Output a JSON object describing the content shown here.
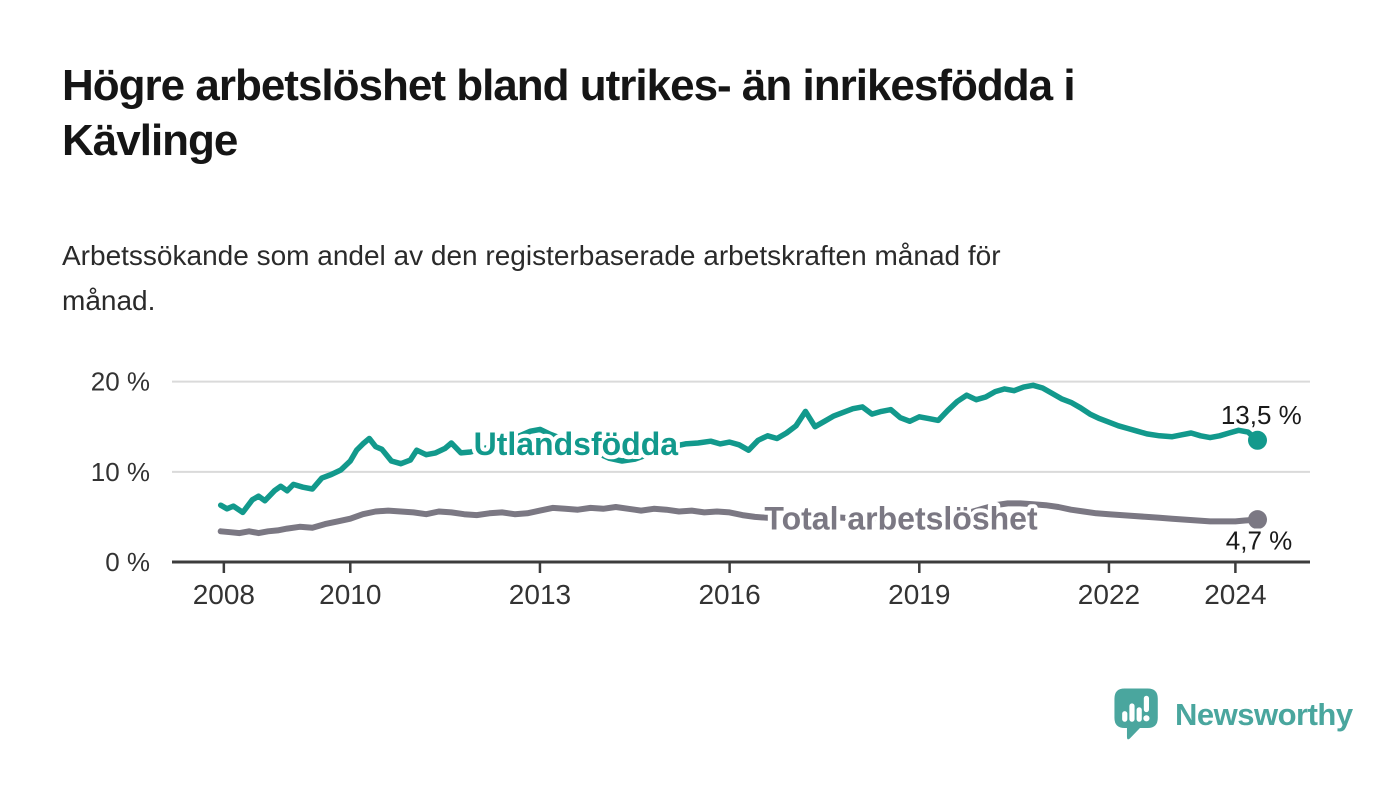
{
  "title": {
    "lines": [
      "Högre arbetslöshet bland utrikes- än inrikesfödda i",
      "Kävlinge"
    ]
  },
  "subtitle": {
    "lines": [
      "Arbetssökande som andel av den registerbaserade arbetskraften månad för",
      "månad."
    ]
  },
  "branding": {
    "name": "Newsworthy",
    "logo_color": "#4AA69E"
  },
  "chart_data": {
    "type": "line",
    "xlabel": "",
    "ylabel": "",
    "xlim": [
      2007.18,
      2025.18
    ],
    "ylim": [
      0,
      22.4
    ],
    "grid": "horizontal",
    "legend_position": "inline-labels",
    "style": {
      "grid_color": "#DADADA",
      "axis_color": "#3C3C3C",
      "axis_text_color": "#333333"
    },
    "y_ticks": [
      {
        "value": 0,
        "label": "0 %"
      },
      {
        "value": 10,
        "label": "10 %"
      },
      {
        "value": 20,
        "label": "20 %"
      }
    ],
    "x_ticks": [
      {
        "year": 2008,
        "label": "2008"
      },
      {
        "year": 2010,
        "label": "2010"
      },
      {
        "year": 2013,
        "label": "2013"
      },
      {
        "year": 2016,
        "label": "2016"
      },
      {
        "year": 2019,
        "label": "2019"
      },
      {
        "year": 2022,
        "label": "2022"
      },
      {
        "year": 2024,
        "label": "2024"
      }
    ],
    "series": [
      {
        "id": "utlandsfodda",
        "name": "Utlandsfödda",
        "color": "#12998C",
        "width": 5.5,
        "end_value_label": "13,5 %",
        "points": [
          [
            2007.95,
            6.3
          ],
          [
            2008.05,
            5.9
          ],
          [
            2008.15,
            6.2
          ],
          [
            2008.3,
            5.5
          ],
          [
            2008.45,
            6.9
          ],
          [
            2008.55,
            7.3
          ],
          [
            2008.65,
            6.8
          ],
          [
            2008.8,
            7.9
          ],
          [
            2008.9,
            8.4
          ],
          [
            2009.0,
            7.9
          ],
          [
            2009.1,
            8.6
          ],
          [
            2009.25,
            8.3
          ],
          [
            2009.4,
            8.1
          ],
          [
            2009.55,
            9.3
          ],
          [
            2009.7,
            9.7
          ],
          [
            2009.85,
            10.2
          ],
          [
            2010.0,
            11.2
          ],
          [
            2010.1,
            12.4
          ],
          [
            2010.2,
            13.1
          ],
          [
            2010.3,
            13.7
          ],
          [
            2010.4,
            12.8
          ],
          [
            2010.5,
            12.5
          ],
          [
            2010.65,
            11.2
          ],
          [
            2010.8,
            10.9
          ],
          [
            2010.95,
            11.3
          ],
          [
            2011.05,
            12.4
          ],
          [
            2011.2,
            11.9
          ],
          [
            2011.35,
            12.1
          ],
          [
            2011.5,
            12.6
          ],
          [
            2011.6,
            13.2
          ],
          [
            2011.75,
            12.1
          ],
          [
            2011.9,
            12.2
          ],
          [
            2012.05,
            12.5
          ],
          [
            2012.25,
            12.8
          ],
          [
            2012.45,
            13.2
          ],
          [
            2012.65,
            13.9
          ],
          [
            2012.85,
            14.5
          ],
          [
            2013.0,
            14.7
          ],
          [
            2013.15,
            14.2
          ],
          [
            2013.3,
            13.8
          ],
          [
            2013.5,
            13.4
          ],
          [
            2013.7,
            12.8
          ],
          [
            2013.9,
            12.1
          ],
          [
            2014.1,
            11.5
          ],
          [
            2014.3,
            11.2
          ],
          [
            2014.5,
            11.4
          ],
          [
            2014.7,
            11.9
          ],
          [
            2014.9,
            12.4
          ],
          [
            2015.1,
            12.8
          ],
          [
            2015.3,
            13.1
          ],
          [
            2015.5,
            13.2
          ],
          [
            2015.7,
            13.4
          ],
          [
            2015.85,
            13.1
          ],
          [
            2016.0,
            13.3
          ],
          [
            2016.15,
            13.0
          ],
          [
            2016.3,
            12.4
          ],
          [
            2016.45,
            13.5
          ],
          [
            2016.6,
            14.0
          ],
          [
            2016.75,
            13.7
          ],
          [
            2016.9,
            14.3
          ],
          [
            2017.05,
            15.1
          ],
          [
            2017.2,
            16.7
          ],
          [
            2017.35,
            15.0
          ],
          [
            2017.5,
            15.6
          ],
          [
            2017.65,
            16.2
          ],
          [
            2017.8,
            16.6
          ],
          [
            2017.95,
            17.0
          ],
          [
            2018.1,
            17.2
          ],
          [
            2018.25,
            16.4
          ],
          [
            2018.4,
            16.7
          ],
          [
            2018.55,
            16.9
          ],
          [
            2018.7,
            16.0
          ],
          [
            2018.85,
            15.6
          ],
          [
            2019.0,
            16.1
          ],
          [
            2019.15,
            15.9
          ],
          [
            2019.3,
            15.7
          ],
          [
            2019.45,
            16.8
          ],
          [
            2019.6,
            17.8
          ],
          [
            2019.75,
            18.5
          ],
          [
            2019.9,
            18.0
          ],
          [
            2020.05,
            18.3
          ],
          [
            2020.2,
            18.9
          ],
          [
            2020.35,
            19.2
          ],
          [
            2020.5,
            19.0
          ],
          [
            2020.65,
            19.4
          ],
          [
            2020.8,
            19.6
          ],
          [
            2020.95,
            19.3
          ],
          [
            2021.1,
            18.7
          ],
          [
            2021.25,
            18.1
          ],
          [
            2021.4,
            17.7
          ],
          [
            2021.55,
            17.1
          ],
          [
            2021.7,
            16.4
          ],
          [
            2021.85,
            15.9
          ],
          [
            2022.0,
            15.5
          ],
          [
            2022.15,
            15.1
          ],
          [
            2022.3,
            14.8
          ],
          [
            2022.45,
            14.5
          ],
          [
            2022.6,
            14.2
          ],
          [
            2022.8,
            14.0
          ],
          [
            2023.0,
            13.9
          ],
          [
            2023.15,
            14.1
          ],
          [
            2023.3,
            14.3
          ],
          [
            2023.45,
            14.0
          ],
          [
            2023.6,
            13.8
          ],
          [
            2023.75,
            14.0
          ],
          [
            2023.9,
            14.3
          ],
          [
            2024.05,
            14.6
          ],
          [
            2024.2,
            14.4
          ],
          [
            2024.35,
            13.5
          ]
        ]
      },
      {
        "id": "total",
        "name": "Total arbetslöshet",
        "color": "#7B7883",
        "width": 6,
        "end_value_label": "4,7 %",
        "points": [
          [
            2007.95,
            3.4
          ],
          [
            2008.1,
            3.3
          ],
          [
            2008.25,
            3.2
          ],
          [
            2008.4,
            3.4
          ],
          [
            2008.55,
            3.2
          ],
          [
            2008.7,
            3.4
          ],
          [
            2008.85,
            3.5
          ],
          [
            2009.0,
            3.7
          ],
          [
            2009.2,
            3.9
          ],
          [
            2009.4,
            3.8
          ],
          [
            2009.6,
            4.2
          ],
          [
            2009.8,
            4.5
          ],
          [
            2010.0,
            4.8
          ],
          [
            2010.2,
            5.3
          ],
          [
            2010.4,
            5.6
          ],
          [
            2010.6,
            5.7
          ],
          [
            2010.8,
            5.6
          ],
          [
            2011.0,
            5.5
          ],
          [
            2011.2,
            5.3
          ],
          [
            2011.4,
            5.6
          ],
          [
            2011.6,
            5.5
          ],
          [
            2011.8,
            5.3
          ],
          [
            2012.0,
            5.2
          ],
          [
            2012.2,
            5.4
          ],
          [
            2012.4,
            5.5
          ],
          [
            2012.6,
            5.3
          ],
          [
            2012.8,
            5.4
          ],
          [
            2013.0,
            5.7
          ],
          [
            2013.2,
            6.0
          ],
          [
            2013.4,
            5.9
          ],
          [
            2013.6,
            5.8
          ],
          [
            2013.8,
            6.0
          ],
          [
            2014.0,
            5.9
          ],
          [
            2014.2,
            6.1
          ],
          [
            2014.4,
            5.9
          ],
          [
            2014.6,
            5.7
          ],
          [
            2014.8,
            5.9
          ],
          [
            2015.0,
            5.8
          ],
          [
            2015.2,
            5.6
          ],
          [
            2015.4,
            5.7
          ],
          [
            2015.6,
            5.5
          ],
          [
            2015.8,
            5.6
          ],
          [
            2016.0,
            5.5
          ],
          [
            2016.2,
            5.2
          ],
          [
            2016.4,
            5.0
          ],
          [
            2016.6,
            4.9
          ],
          [
            2016.8,
            5.1
          ],
          [
            2017.0,
            5.2
          ],
          [
            2017.2,
            5.0
          ],
          [
            2017.4,
            4.9
          ],
          [
            2017.6,
            5.0
          ],
          [
            2017.8,
            4.9
          ],
          [
            2018.0,
            4.8
          ],
          [
            2018.2,
            4.9
          ],
          [
            2018.4,
            4.8
          ],
          [
            2018.6,
            4.9
          ],
          [
            2018.8,
            4.7
          ],
          [
            2019.0,
            4.8
          ],
          [
            2019.2,
            4.9
          ],
          [
            2019.4,
            5.0
          ],
          [
            2019.6,
            5.2
          ],
          [
            2019.8,
            5.5
          ],
          [
            2020.0,
            5.9
          ],
          [
            2020.2,
            6.3
          ],
          [
            2020.4,
            6.5
          ],
          [
            2020.6,
            6.5
          ],
          [
            2020.8,
            6.4
          ],
          [
            2021.0,
            6.3
          ],
          [
            2021.2,
            6.1
          ],
          [
            2021.4,
            5.8
          ],
          [
            2021.6,
            5.6
          ],
          [
            2021.8,
            5.4
          ],
          [
            2022.0,
            5.3
          ],
          [
            2022.2,
            5.2
          ],
          [
            2022.4,
            5.1
          ],
          [
            2022.6,
            5.0
          ],
          [
            2022.8,
            4.9
          ],
          [
            2023.0,
            4.8
          ],
          [
            2023.2,
            4.7
          ],
          [
            2023.4,
            4.6
          ],
          [
            2023.6,
            4.5
          ],
          [
            2023.8,
            4.5
          ],
          [
            2024.0,
            4.5
          ],
          [
            2024.15,
            4.6
          ],
          [
            2024.35,
            4.7
          ]
        ]
      }
    ],
    "annotations": [
      {
        "name": "series-label-utlandsfodda",
        "text": "Utlandsfödda",
        "x": 2011.95,
        "y": 13.1,
        "anchor": "start",
        "color": "#12998C",
        "size": 32,
        "bold": true
      },
      {
        "name": "series-label-total",
        "text": "Total arbetslöshet",
        "x": 2016.55,
        "y": 4.85,
        "anchor": "start",
        "color": "#7B7883",
        "size": 32,
        "bold": true
      },
      {
        "name": "end-value-utlandsfodda",
        "text": "13,5 %",
        "x": 2025.05,
        "y": 16.3,
        "anchor": "end",
        "color": "#1A1A1A",
        "size": 26,
        "bold": false
      },
      {
        "name": "end-value-total",
        "text": "4,7 %",
        "x": 2024.9,
        "y": 2.4,
        "anchor": "end",
        "color": "#1A1A1A",
        "size": 26,
        "bold": false
      }
    ]
  }
}
